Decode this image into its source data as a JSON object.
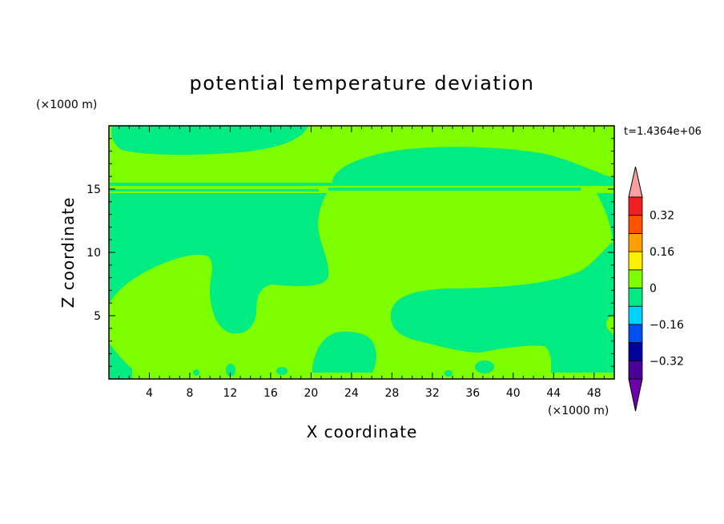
{
  "chart_data": {
    "type": "heatmap",
    "title": "potential temperature deviation",
    "xlabel": "X coordinate",
    "ylabel": "Z coordinate",
    "x_unit": "(×1000 m)",
    "y_unit": "(×1000 m)",
    "time_label": "t=1.4364e+06",
    "xlim": [
      0,
      50
    ],
    "ylim": [
      0,
      20
    ],
    "x_ticks": [
      "4",
      "8",
      "12",
      "16",
      "20",
      "24",
      "28",
      "32",
      "36",
      "40",
      "44",
      "48"
    ],
    "y_ticks": [
      "5",
      "10",
      "15"
    ],
    "colorbar": {
      "levels": [
        -0.4,
        -0.32,
        -0.24,
        -0.16,
        -0.08,
        0,
        0.08,
        0.16,
        0.24,
        0.32,
        0.4
      ],
      "tick_labels": [
        "0.32",
        "0.16",
        "0",
        "−0.16",
        "−0.32"
      ],
      "tick_values": [
        0.32,
        0.16,
        0,
        -0.16,
        -0.32
      ],
      "colors": [
        "#4B0096",
        "#00009B",
        "#0050F0",
        "#00D2FF",
        "#00EB82",
        "#7DFF00",
        "#FFF000",
        "#FFA000",
        "#FF5000",
        "#F01E1E"
      ],
      "under_color": "#6E00AA",
      "over_color": "#FAA0A0"
    },
    "field_colors": {
      "background": "#7DFF00",
      "negative": "#00EB82"
    }
  }
}
